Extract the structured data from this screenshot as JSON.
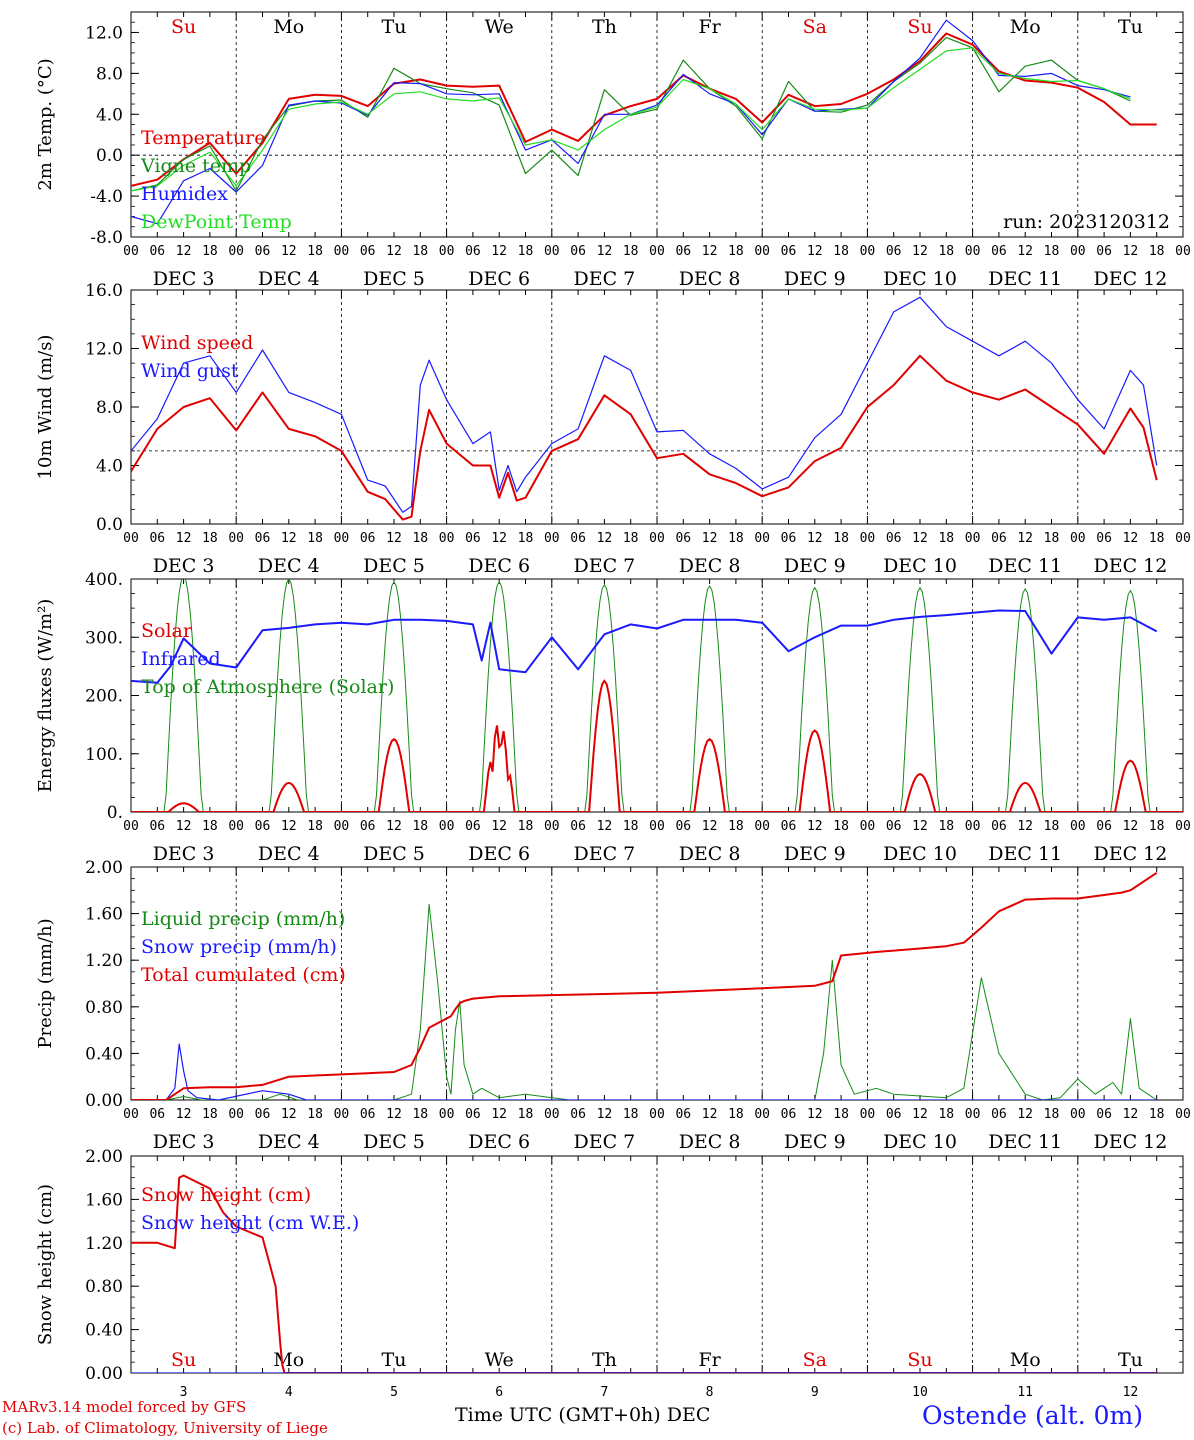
{
  "run_label": "run: 2023120312",
  "day_names": [
    "Su",
    "Mo",
    "Tu",
    "We",
    "Th",
    "Fr",
    "Sa",
    "Su",
    "Mo",
    "Tu"
  ],
  "day_colors": [
    "#e00000",
    "#000000",
    "#000000",
    "#000000",
    "#000000",
    "#000000",
    "#e00000",
    "#e00000",
    "#000000",
    "#000000"
  ],
  "hour_ticks": [
    "00",
    "06",
    "12",
    "18"
  ],
  "hour_end": "00",
  "date_labels": [
    "DEC 3",
    "DEC 4",
    "DEC 5",
    "DEC 6",
    "DEC 7",
    "DEC 8",
    "DEC 9",
    "DEC 10",
    "DEC 11",
    "DEC 12"
  ],
  "bottom_day_numbers": [
    "3",
    "4",
    "5",
    "6",
    "7",
    "8",
    "9",
    "10",
    "11",
    "12"
  ],
  "footer": {
    "credit_line1": "MARv3.14 model forced by GFS",
    "credit_line2": "(c) Lab. of Climatology, University of Liege",
    "x_title": "Time UTC (GMT+0h) DEC",
    "station": "Ostende (alt. 0m)"
  },
  "colors": {
    "red": "#e00000",
    "green": "#178a17",
    "blue": "#1a1aff",
    "lightgreen": "#22dd22"
  },
  "chart_data": [
    {
      "type": "line",
      "title": "",
      "ylabel": "2m Temp. (°C)",
      "ylim": [
        -8,
        14
      ],
      "yticks": [
        "-8.0",
        "-4.0",
        "0.0",
        "4.0",
        "8.0",
        "12.0"
      ],
      "ytick_values": [
        -8,
        -4,
        0,
        4,
        8,
        12
      ],
      "reference_line": 0,
      "legend": [
        "Temperature",
        "Vigne temp",
        "Humidex",
        "DewPoint Temp"
      ],
      "x_unit": "hours since Dec 3 00 UTC",
      "series": [
        {
          "name": "Temperature",
          "color": "red",
          "x": [
            0,
            6,
            9,
            12,
            18,
            24,
            30,
            36,
            42,
            48,
            54,
            60,
            66,
            72,
            78,
            84,
            90,
            96,
            102,
            108,
            114,
            120,
            126,
            132,
            138,
            144,
            150,
            156,
            162,
            168,
            174,
            180,
            186,
            192,
            198,
            204,
            210,
            216,
            222,
            228,
            234
          ],
          "y": [
            -3.0,
            -2.4,
            -1.4,
            -0.4,
            1.2,
            -1.8,
            1.2,
            5.5,
            5.9,
            5.8,
            4.8,
            7.0,
            7.4,
            6.8,
            6.7,
            6.8,
            1.3,
            2.5,
            1.4,
            3.9,
            4.8,
            5.5,
            7.8,
            6.5,
            5.5,
            3.2,
            5.9,
            4.8,
            5.0,
            6.0,
            7.4,
            9.2,
            11.9,
            10.8,
            8.2,
            7.3,
            7.1,
            6.6,
            5.2,
            3.0,
            3.0
          ]
        },
        {
          "name": "Vigne temp",
          "color": "green",
          "x": [
            0,
            6,
            12,
            18,
            24,
            30,
            36,
            42,
            48,
            54,
            60,
            66,
            72,
            78,
            84,
            90,
            96,
            102,
            108,
            114,
            120,
            126,
            132,
            138,
            144,
            150,
            156,
            162,
            168,
            174,
            180,
            186,
            192,
            198,
            204,
            210,
            216,
            222,
            228
          ],
          "y": [
            -3.5,
            -2.9,
            -0.4,
            0.9,
            -3.5,
            1.5,
            4.8,
            5.3,
            5.4,
            3.7,
            8.5,
            7.0,
            6.5,
            6.1,
            4.9,
            -1.8,
            0.5,
            -2.0,
            6.4,
            3.9,
            4.5,
            9.3,
            6.5,
            4.8,
            1.6,
            7.2,
            4.3,
            4.2,
            4.9,
            7.2,
            9.0,
            11.5,
            10.5,
            6.2,
            8.7,
            9.3,
            7.3,
            6.5,
            5.3
          ]
        },
        {
          "name": "Humidex",
          "color": "blue",
          "x": [
            0,
            6,
            12,
            18,
            24,
            30,
            36,
            42,
            48,
            54,
            60,
            66,
            72,
            78,
            84,
            90,
            96,
            102,
            108,
            114,
            120,
            126,
            132,
            138,
            144,
            150,
            156,
            162,
            168,
            174,
            180,
            186,
            192,
            198,
            204,
            210,
            216,
            222,
            228
          ],
          "y": [
            -6.0,
            -6.7,
            -2.5,
            -1.3,
            -3.6,
            -1.0,
            4.9,
            5.3,
            5.1,
            3.9,
            7.1,
            7.0,
            6.0,
            5.9,
            6.0,
            0.5,
            1.5,
            -0.8,
            4.0,
            4.0,
            4.9,
            7.9,
            6.0,
            5.0,
            2.0,
            5.5,
            4.3,
            4.5,
            4.6,
            7.2,
            9.5,
            13.2,
            11.2,
            7.8,
            7.7,
            8.0,
            6.8,
            6.4,
            5.7
          ]
        },
        {
          "name": "DewPoint Temp",
          "color": "lightgreen",
          "x": [
            0,
            6,
            12,
            18,
            24,
            30,
            36,
            42,
            48,
            54,
            60,
            66,
            72,
            78,
            84,
            90,
            96,
            102,
            108,
            114,
            120,
            126,
            132,
            138,
            144,
            150,
            156,
            162,
            168,
            174,
            180,
            186,
            192,
            198,
            204,
            210,
            216,
            222,
            228
          ],
          "y": [
            -3.5,
            -3.0,
            -1.0,
            0.3,
            -3.0,
            0.5,
            4.5,
            5.0,
            5.2,
            4.0,
            6.0,
            6.2,
            5.5,
            5.3,
            5.6,
            1.0,
            1.5,
            0.5,
            2.5,
            4.0,
            4.7,
            7.4,
            6.5,
            5.0,
            2.5,
            5.5,
            4.5,
            4.4,
            4.6,
            6.6,
            8.4,
            10.2,
            10.5,
            8.0,
            7.5,
            7.2,
            7.3,
            6.5,
            5.5
          ]
        }
      ]
    },
    {
      "type": "line",
      "title": "",
      "ylabel": "10m Wind (m/s)",
      "ylim": [
        0,
        16
      ],
      "yticks": [
        "0.0",
        "4.0",
        "8.0",
        "12.0",
        "16.0"
      ],
      "ytick_values": [
        0,
        4,
        8,
        12,
        16
      ],
      "reference_line": 5,
      "legend": [
        "Wind speed",
        "Wind gust"
      ],
      "x_unit": "hours since Dec 3 00 UTC",
      "series": [
        {
          "name": "Wind speed",
          "color": "red",
          "x": [
            0,
            6,
            12,
            18,
            24,
            30,
            36,
            42,
            48,
            54,
            58,
            62,
            64,
            66,
            68,
            72,
            78,
            82,
            84,
            86,
            88,
            90,
            96,
            102,
            108,
            114,
            120,
            126,
            132,
            138,
            144,
            150,
            156,
            162,
            168,
            174,
            180,
            186,
            192,
            198,
            204,
            210,
            216,
            222,
            228,
            231,
            234
          ],
          "y": [
            3.6,
            6.5,
            8.0,
            8.6,
            6.4,
            9.0,
            6.5,
            6.0,
            5.0,
            2.2,
            1.7,
            0.3,
            0.5,
            5.0,
            7.8,
            5.5,
            4.0,
            4.0,
            1.8,
            3.5,
            1.6,
            1.8,
            5.0,
            5.8,
            8.8,
            7.5,
            4.5,
            4.8,
            3.4,
            2.8,
            1.9,
            2.5,
            4.3,
            5.2,
            8.0,
            9.5,
            11.5,
            9.8,
            9.0,
            8.5,
            9.2,
            8.0,
            6.8,
            4.8,
            7.9,
            6.6,
            3.0
          ]
        },
        {
          "name": "Wind gust",
          "color": "blue",
          "x": [
            0,
            6,
            12,
            18,
            24,
            30,
            36,
            42,
            48,
            54,
            58,
            62,
            64,
            66,
            68,
            72,
            78,
            82,
            84,
            86,
            88,
            90,
            96,
            102,
            108,
            114,
            120,
            126,
            132,
            138,
            144,
            150,
            156,
            162,
            168,
            174,
            180,
            186,
            192,
            198,
            204,
            210,
            216,
            222,
            228,
            231,
            234
          ],
          "y": [
            5.0,
            7.2,
            11.0,
            11.5,
            9.0,
            11.9,
            9.0,
            8.3,
            7.5,
            3.0,
            2.6,
            0.8,
            1.2,
            9.5,
            11.2,
            8.5,
            5.5,
            6.3,
            2.3,
            4.0,
            2.2,
            3.2,
            5.5,
            6.5,
            11.5,
            10.5,
            6.3,
            6.4,
            4.8,
            3.8,
            2.4,
            3.2,
            5.9,
            7.5,
            11.0,
            14.5,
            15.5,
            13.5,
            12.5,
            11.5,
            12.5,
            11.0,
            8.5,
            6.5,
            10.5,
            9.5,
            4.0
          ]
        }
      ]
    },
    {
      "type": "line",
      "title": "",
      "ylabel": "Energy fluxes (W/m²)",
      "ylim": [
        0,
        400
      ],
      "yticks": [
        "0.",
        "100.",
        "200.",
        "300.",
        "400."
      ],
      "ytick_values": [
        0,
        100,
        200,
        300,
        400
      ],
      "legend": [
        "Solar",
        "Infrared",
        "Top of Atmosphere (Solar)"
      ],
      "x_unit": "hours since Dec 3 00 UTC",
      "series": [
        {
          "name": "Top of Atmosphere (Solar)",
          "color": "green",
          "toa_peak": [
            405,
            400,
            395,
            395,
            390,
            388,
            385,
            385,
            383,
            380
          ]
        },
        {
          "name": "Solar",
          "color": "red",
          "day_peaks": [
            15,
            50,
            125,
            155,
            225,
            125,
            140,
            65,
            50,
            88
          ]
        },
        {
          "name": "Infrared",
          "color": "blue",
          "x": [
            0,
            6,
            9,
            12,
            18,
            24,
            30,
            36,
            42,
            48,
            54,
            60,
            66,
            72,
            78,
            80,
            82,
            84,
            90,
            96,
            102,
            108,
            114,
            120,
            126,
            132,
            138,
            144,
            150,
            156,
            162,
            168,
            174,
            180,
            186,
            192,
            198,
            204,
            210,
            216,
            222,
            228,
            234
          ],
          "y": [
            225,
            222,
            250,
            298,
            255,
            248,
            312,
            316,
            322,
            325,
            322,
            330,
            330,
            328,
            322,
            260,
            325,
            245,
            240,
            300,
            245,
            305,
            322,
            315,
            330,
            330,
            330,
            325,
            276,
            300,
            320,
            320,
            330,
            335,
            338,
            342,
            346,
            345,
            272,
            334,
            330,
            334,
            310
          ]
        }
      ]
    },
    {
      "type": "line",
      "title": "",
      "ylabel": "Precip (mm/h)",
      "ylim": [
        0,
        2
      ],
      "yticks": [
        "0.00",
        "0.40",
        "0.80",
        "1.20",
        "1.60",
        "2.00"
      ],
      "ytick_values": [
        0,
        0.4,
        0.8,
        1.2,
        1.6,
        2.0
      ],
      "legend": [
        "Liquid precip (mm/h)",
        "Snow precip (mm/h)",
        "Total cumulated (cm)"
      ],
      "x_unit": "hours since Dec 3 00 UTC",
      "series": [
        {
          "name": "Liquid precip (mm/h)",
          "color": "green",
          "x": [
            0,
            8,
            12,
            16,
            30,
            34,
            38,
            60,
            64,
            66,
            68,
            70,
            72,
            73,
            74,
            75,
            76,
            78,
            80,
            84,
            90,
            100,
            156,
            158,
            160,
            162,
            165,
            170,
            174,
            186,
            190,
            194,
            198,
            204,
            208,
            212,
            216,
            220,
            222,
            224,
            226,
            228,
            230,
            234
          ],
          "y": [
            0,
            0,
            0.03,
            0,
            0,
            0.05,
            0,
            0,
            0.05,
            0.6,
            1.68,
            1.0,
            0.2,
            0.05,
            0.6,
            0.85,
            0.3,
            0.05,
            0.1,
            0.02,
            0.05,
            0,
            0,
            0.4,
            1.2,
            0.3,
            0.05,
            0.1,
            0.05,
            0.02,
            0.1,
            1.05,
            0.4,
            0.05,
            0,
            0.02,
            0.18,
            0.05,
            0.1,
            0.15,
            0.05,
            0.7,
            0.1,
            0
          ]
        },
        {
          "name": "Snow precip (mm/h)",
          "color": "blue",
          "x": [
            0,
            8,
            10,
            11,
            12,
            13,
            15,
            20,
            30,
            36,
            40,
            200,
            234
          ],
          "y": [
            0,
            0,
            0.1,
            0.48,
            0.25,
            0.08,
            0.02,
            0,
            0.08,
            0.05,
            0,
            0,
            0
          ]
        },
        {
          "name": "Total cumulated (cm)",
          "color": "red",
          "x": [
            0,
            8,
            10,
            12,
            18,
            24,
            30,
            36,
            42,
            48,
            54,
            60,
            64,
            66,
            68,
            70,
            72,
            73,
            74,
            75,
            76,
            78,
            84,
            96,
            108,
            120,
            132,
            144,
            156,
            158,
            160,
            162,
            170,
            180,
            186,
            190,
            194,
            198,
            204,
            210,
            216,
            222,
            226,
            228,
            230,
            234
          ],
          "y": [
            0,
            0,
            0.05,
            0.1,
            0.11,
            0.11,
            0.13,
            0.2,
            0.21,
            0.22,
            0.23,
            0.24,
            0.3,
            0.45,
            0.62,
            0.66,
            0.7,
            0.72,
            0.78,
            0.83,
            0.85,
            0.87,
            0.89,
            0.9,
            0.91,
            0.92,
            0.94,
            0.96,
            0.98,
            1.0,
            1.02,
            1.24,
            1.27,
            1.3,
            1.32,
            1.35,
            1.48,
            1.62,
            1.72,
            1.73,
            1.73,
            1.76,
            1.78,
            1.8,
            1.85,
            1.95
          ]
        }
      ]
    },
    {
      "type": "line",
      "title": "",
      "ylabel": "Snow height (cm)",
      "ylim": [
        0,
        2
      ],
      "yticks": [
        "0.00",
        "0.40",
        "0.80",
        "1.20",
        "1.60",
        "2.00"
      ],
      "ytick_values": [
        0,
        0.4,
        0.8,
        1.2,
        1.6,
        2.0
      ],
      "legend": [
        "Snow height (cm)",
        "Snow height (cm W.E.)"
      ],
      "x_unit": "hours since Dec 3 00 UTC",
      "series": [
        {
          "name": "Snow height (cm)",
          "color": "red",
          "x": [
            0,
            6,
            10,
            11,
            12,
            14,
            18,
            21,
            24,
            30,
            33,
            34,
            34.5,
            35,
            234
          ],
          "y": [
            1.2,
            1.2,
            1.15,
            1.8,
            1.82,
            1.78,
            1.7,
            1.48,
            1.35,
            1.25,
            0.8,
            0.3,
            0.08,
            0,
            0
          ]
        },
        {
          "name": "Snow height (cm W.E.)",
          "color": "blue",
          "x": [
            0,
            234
          ],
          "y": [
            0,
            0
          ]
        }
      ]
    }
  ]
}
